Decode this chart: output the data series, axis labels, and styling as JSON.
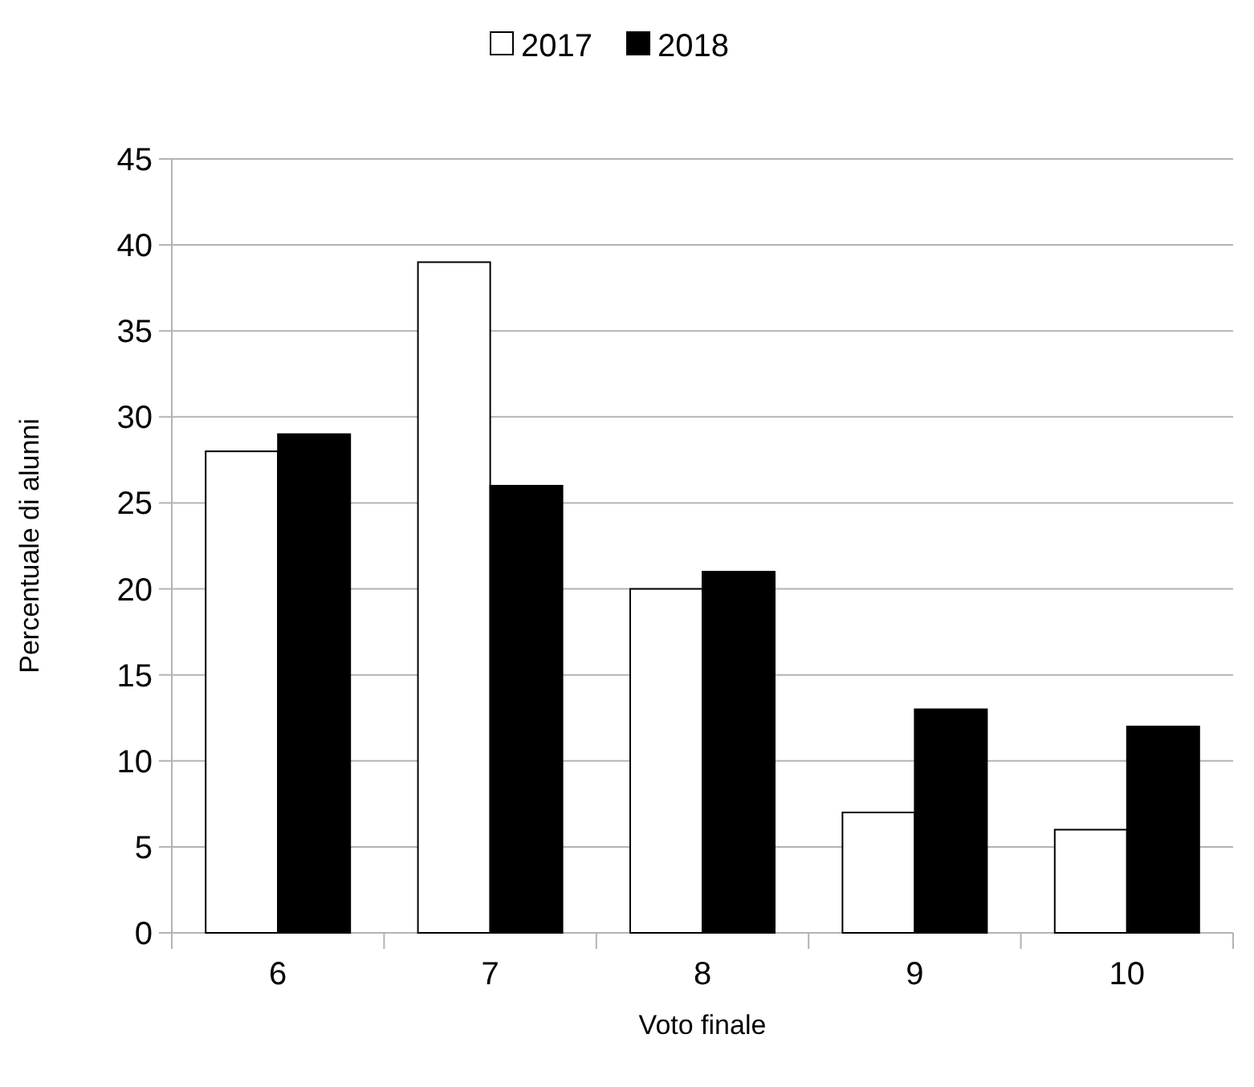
{
  "chart_data": {
    "type": "bar",
    "xlabel": "Voto finale",
    "ylabel": "Percentuale di alunni",
    "categories": [
      "6",
      "7",
      "8",
      "9",
      "10"
    ],
    "series": [
      {
        "name": "2017",
        "color": "#ffffff",
        "values": [
          28,
          39,
          20,
          7,
          6
        ]
      },
      {
        "name": "2018",
        "color": "#000000",
        "values": [
          29,
          26,
          21,
          13,
          12
        ]
      }
    ],
    "ylim": [
      0,
      45
    ],
    "yticks": [
      0,
      5,
      10,
      15,
      20,
      25,
      30,
      35,
      40,
      45
    ],
    "grid": "y",
    "legend": "top"
  }
}
